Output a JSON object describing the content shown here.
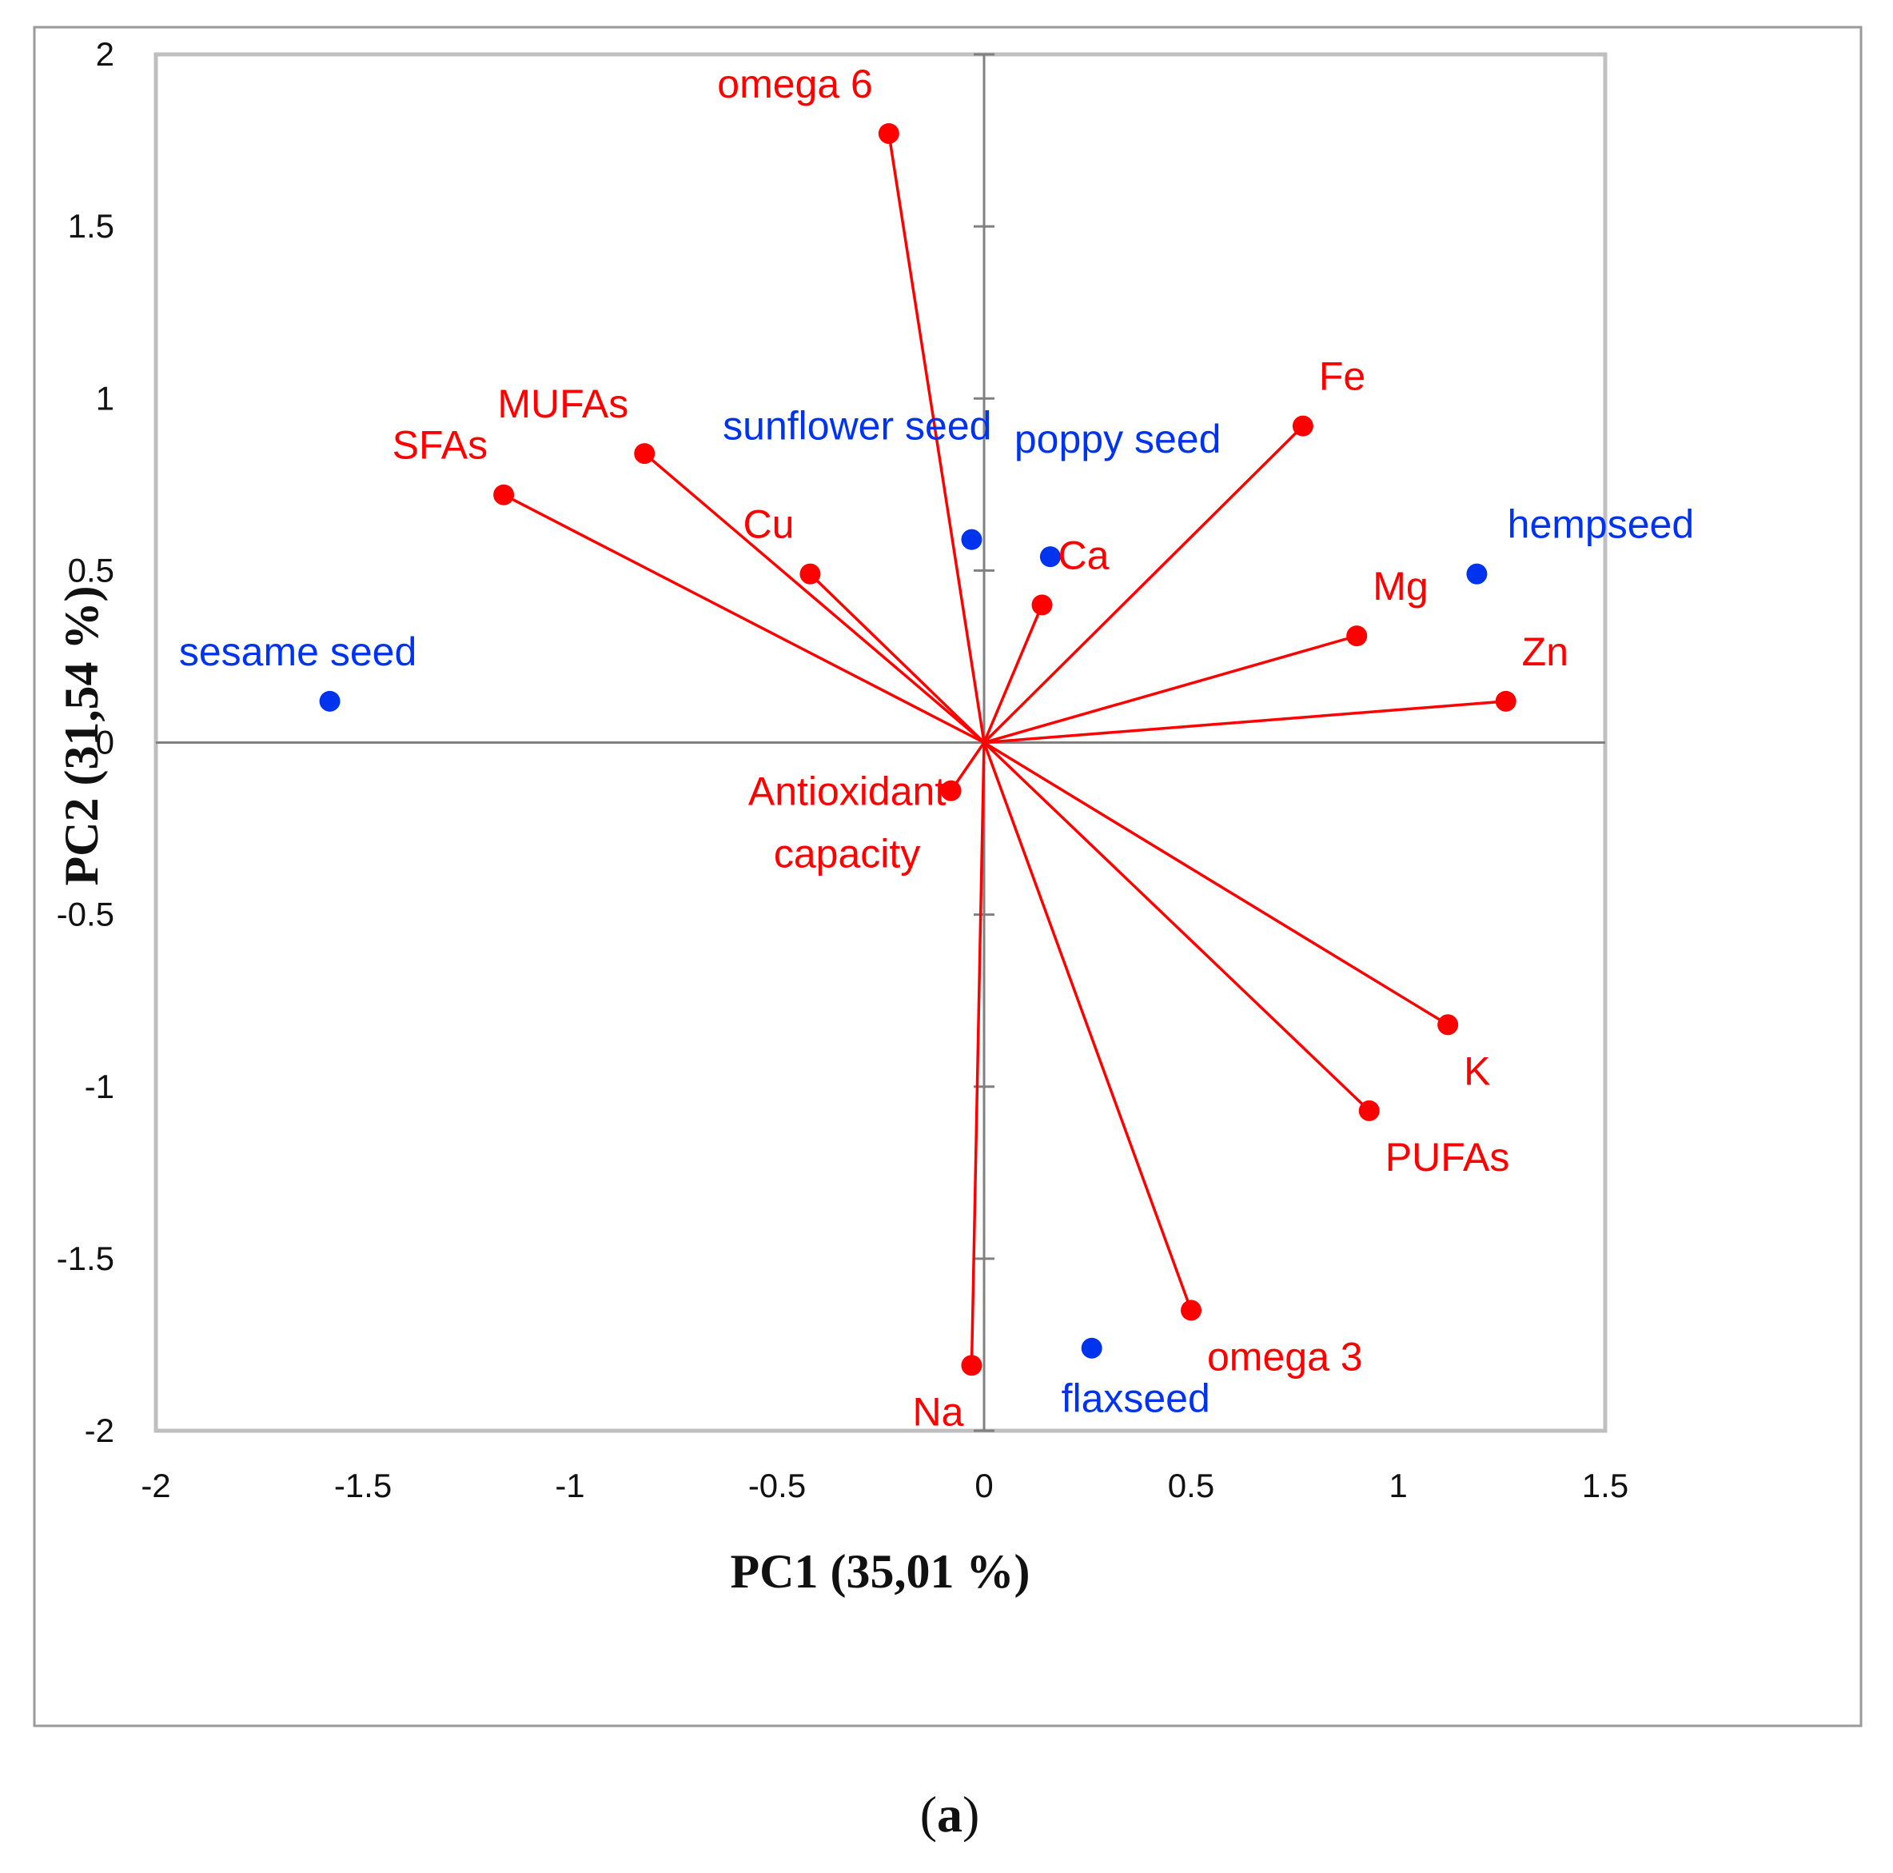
{
  "chart_data": {
    "type": "scatter",
    "subtype": "pca-biplot",
    "xlabel": "PC1 (35,01 %)",
    "ylabel": "PC2 (31,54 %)",
    "xlim": [
      -2,
      1.5
    ],
    "ylim": [
      -2,
      2
    ],
    "x_ticks": [
      "-2",
      "-1.5",
      "-1",
      "-0.5",
      "0",
      "0.5",
      "1",
      "1.5"
    ],
    "y_ticks": [
      "2",
      "1.5",
      "1",
      "0.5",
      "0",
      "-0.5",
      "-1",
      "-1.5",
      "-2"
    ],
    "caption_letter": "a",
    "colors": {
      "variables": "#ff0000",
      "samples": "#0033ee",
      "frame": "#bfbfbf",
      "axes": "#808080"
    },
    "series": [
      {
        "name": "variables",
        "kind": "vectors",
        "points": [
          {
            "label": "omega 6",
            "x": -0.23,
            "y": 1.77,
            "anchor": "top-left"
          },
          {
            "label": "Fe",
            "x": 0.77,
            "y": 0.92,
            "anchor": "top-right"
          },
          {
            "label": "MUFAs",
            "x": -0.82,
            "y": 0.84,
            "anchor": "top-left"
          },
          {
            "label": "SFAs",
            "x": -1.16,
            "y": 0.72,
            "anchor": "top-left"
          },
          {
            "label": "Cu",
            "x": -0.42,
            "y": 0.49,
            "anchor": "top-left"
          },
          {
            "label": "Ca",
            "x": 0.14,
            "y": 0.4,
            "anchor": "top-right"
          },
          {
            "label": "Mg",
            "x": 0.9,
            "y": 0.31,
            "anchor": "top-right"
          },
          {
            "label": "Zn",
            "x": 1.26,
            "y": 0.12,
            "anchor": "top-right"
          },
          {
            "label": "Antioxidant capacity",
            "x": -0.08,
            "y": -0.14,
            "anchor": "left"
          },
          {
            "label": "K",
            "x": 1.12,
            "y": -0.82,
            "anchor": "bottom-right"
          },
          {
            "label": "PUFAs",
            "x": 0.93,
            "y": -1.07,
            "anchor": "bottom-right"
          },
          {
            "label": "omega 3",
            "x": 0.5,
            "y": -1.65,
            "anchor": "bottom-right"
          },
          {
            "label": "Na",
            "x": -0.03,
            "y": -1.81,
            "anchor": "bottom-left"
          }
        ]
      },
      {
        "name": "samples",
        "kind": "points",
        "points": [
          {
            "label": "sunflower seed",
            "x": -0.03,
            "y": 0.59
          },
          {
            "label": "poppy seed",
            "x": 0.16,
            "y": 0.54
          },
          {
            "label": "hempseed",
            "x": 1.19,
            "y": 0.49
          },
          {
            "label": "sesame seed",
            "x": -1.58,
            "y": 0.12
          },
          {
            "label": "flaxseed",
            "x": 0.26,
            "y": -1.76
          }
        ]
      }
    ]
  }
}
